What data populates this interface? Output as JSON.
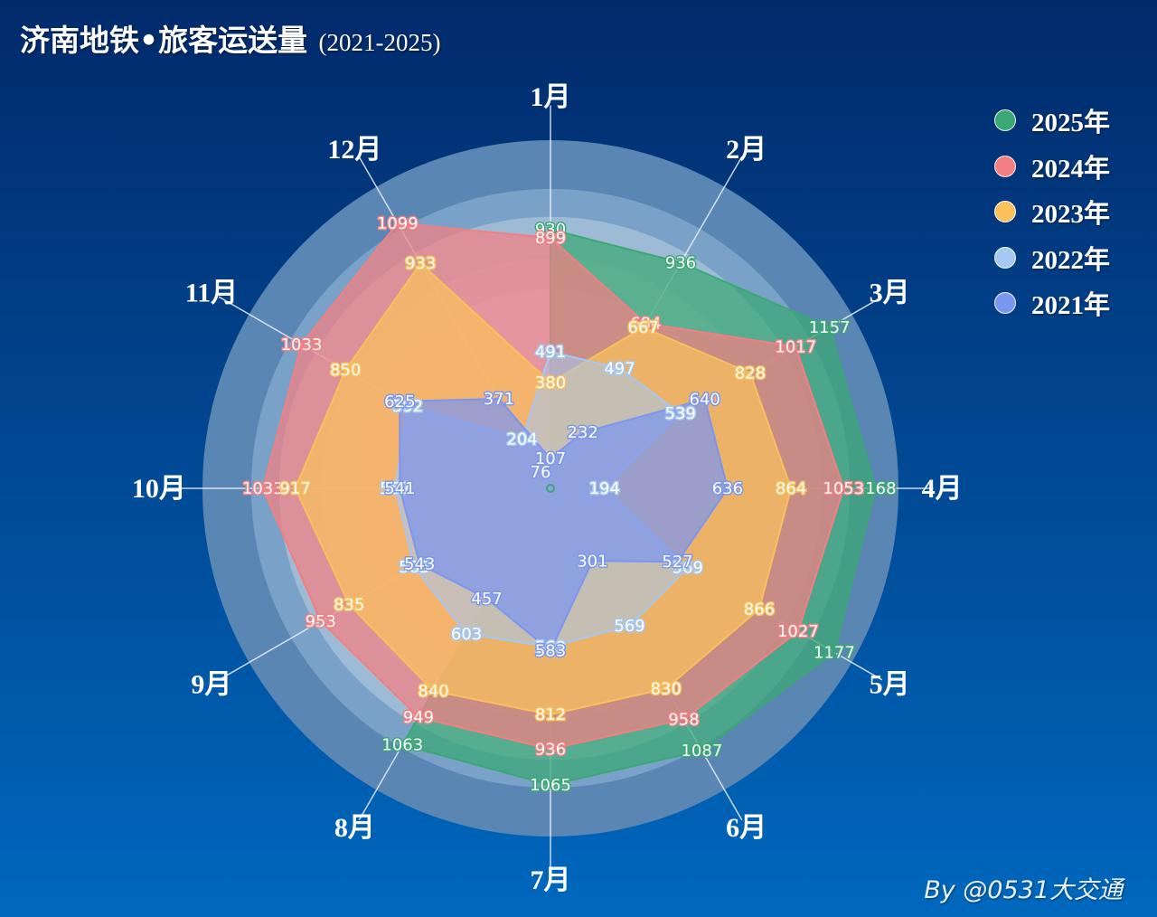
{
  "title": "济南地铁•旅客运送量",
  "subtitle": "(2021-2025)",
  "credit": "By @0531大交通",
  "chart_data": {
    "type": "radar",
    "title": "济南地铁•旅客运送量",
    "subtitle": "(2021-2025)",
    "indicators": [
      "1月",
      "2月",
      "3月",
      "4月",
      "5月",
      "6月",
      "7月",
      "8月",
      "9月",
      "10月",
      "11月",
      "12月"
    ],
    "max": 1250,
    "legend_position": "top-right",
    "series": [
      {
        "name": "2025年",
        "color": "#3aa874",
        "values": [
          930,
          936,
          1157,
          1168,
          1177,
          1087,
          1065,
          1063,
          null,
          null,
          null,
          null
        ]
      },
      {
        "name": "2024年",
        "color": "#f47f82",
        "values": [
          899,
          684,
          1017,
          1053,
          1027,
          958,
          936,
          949,
          953,
          1033,
          1033,
          1099
        ]
      },
      {
        "name": "2023年",
        "color": "#f9c05c",
        "values": [
          380,
          667,
          828,
          864,
          866,
          830,
          812,
          840,
          835,
          917,
          850,
          933
        ]
      },
      {
        "name": "2022年",
        "color": "#a5c8f2",
        "values": [
          491,
          497,
          539,
          194,
          569,
          569,
          569,
          603,
          565,
          557,
          592,
          204
        ]
      },
      {
        "name": "2021年",
        "color": "#7b96f0",
        "values": [
          107,
          232,
          640,
          636,
          527,
          301,
          583,
          457,
          543,
          541,
          625,
          371
        ]
      }
    ],
    "extra_labels": [
      {
        "text": "76",
        "series": "2021年"
      }
    ]
  }
}
